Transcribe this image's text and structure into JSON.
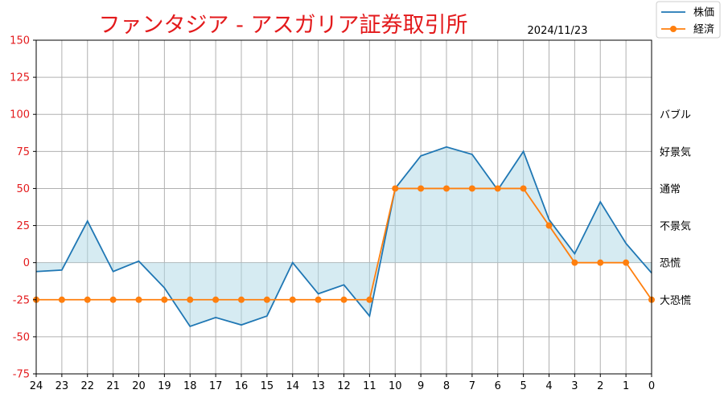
{
  "chart_data": {
    "type": "line",
    "title": "ファンタジア - アスガリア証券取引所",
    "date": "2024/11/23",
    "x": [
      24,
      23,
      22,
      21,
      20,
      19,
      18,
      17,
      16,
      15,
      14,
      13,
      12,
      11,
      10,
      9,
      8,
      7,
      6,
      5,
      4,
      3,
      2,
      1,
      0
    ],
    "xlim": [
      24,
      0
    ],
    "ylim": [
      -75,
      150
    ],
    "y_ticks": [
      -75,
      -50,
      -25,
      0,
      25,
      50,
      75,
      100,
      125,
      150
    ],
    "grid": true,
    "legend_position": "top-right",
    "right_labels": [
      {
        "y": 100,
        "label": "バブル"
      },
      {
        "y": 75,
        "label": "好景気"
      },
      {
        "y": 50,
        "label": "通常"
      },
      {
        "y": 25,
        "label": "不景気"
      },
      {
        "y": 0,
        "label": "恐慌"
      },
      {
        "y": -25,
        "label": "大恐慌"
      }
    ],
    "series": [
      {
        "name": "株価",
        "color": "#1f77b4",
        "marker": "none",
        "fill": true,
        "values": [
          -6,
          -5,
          28,
          -6,
          1,
          -17,
          -43,
          -37,
          -42,
          -36,
          0,
          -21,
          -15,
          -36,
          50,
          72,
          78,
          73,
          49,
          75,
          29,
          6,
          41,
          13,
          -7
        ]
      },
      {
        "name": "経済",
        "color": "#ff7f0e",
        "marker": "circle",
        "fill": false,
        "values": [
          -25,
          -25,
          -25,
          -25,
          -25,
          -25,
          -25,
          -25,
          -25,
          -25,
          -25,
          -25,
          -25,
          -25,
          50,
          50,
          50,
          50,
          50,
          50,
          25,
          0,
          0,
          0,
          -25
        ]
      }
    ],
    "colors": {
      "title": "#e31a1c",
      "axis_y_ticks": "#e31a1c",
      "fill": "#add8e6",
      "grid": "#b0b0b0"
    }
  }
}
